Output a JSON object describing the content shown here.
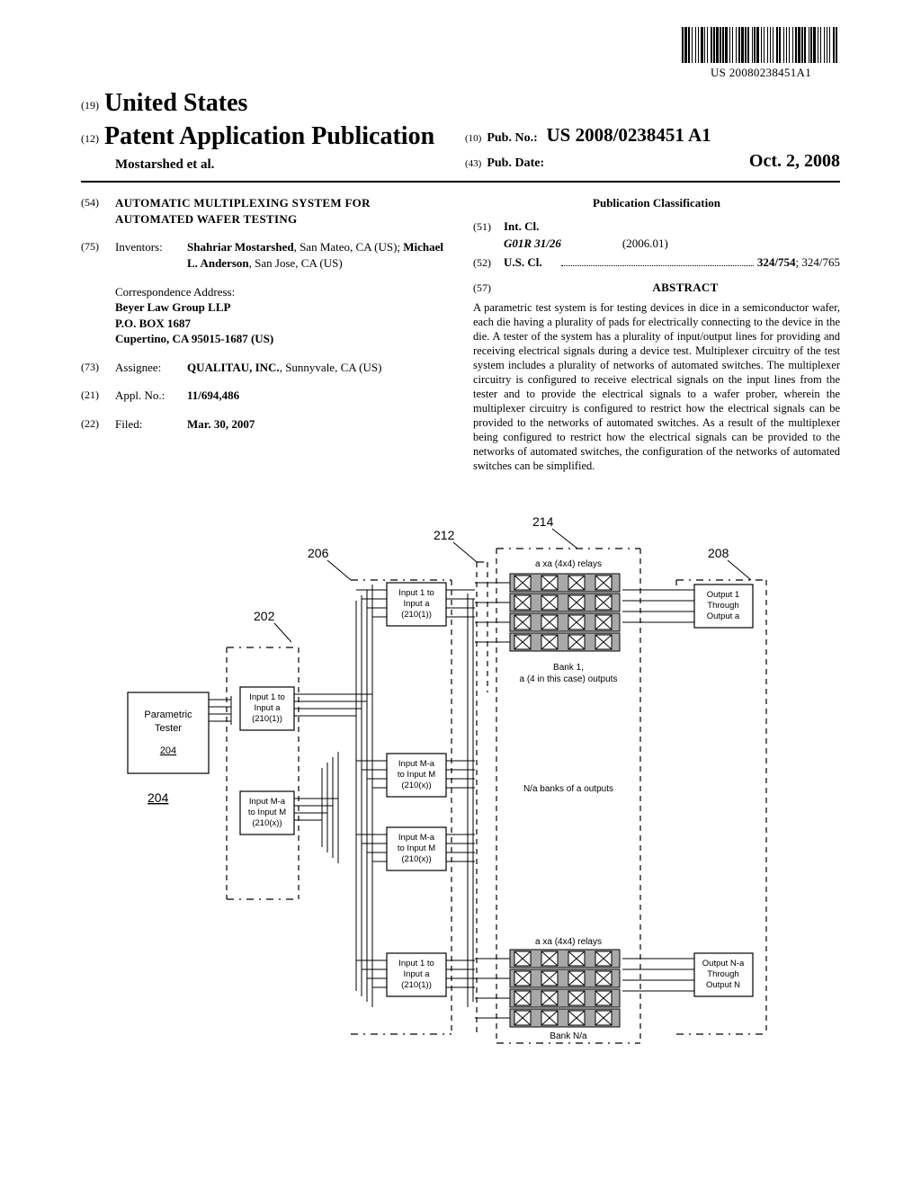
{
  "barcode": {
    "sub_text": "US 20080238451A1",
    "bar_widths": [
      2,
      1,
      3,
      1,
      2,
      2,
      1,
      3,
      1,
      2,
      1,
      2,
      3,
      1,
      1,
      2,
      1,
      3,
      2,
      1,
      2,
      1,
      3,
      1,
      2,
      1,
      2,
      1,
      3,
      2,
      1,
      2,
      1,
      3,
      1,
      2,
      2,
      1,
      3,
      1,
      2,
      1,
      2,
      3,
      1,
      1,
      2,
      1,
      3,
      2,
      1,
      2,
      1,
      3,
      1,
      2,
      1,
      2,
      1,
      3,
      2,
      1,
      2,
      3,
      1,
      2,
      1,
      2,
      1,
      3,
      1,
      2,
      2,
      1,
      3,
      1,
      2,
      1,
      2,
      3,
      1,
      1,
      2,
      1,
      3,
      2,
      1,
      2,
      1,
      3,
      1,
      2,
      1,
      2,
      1,
      3,
      2,
      1,
      2,
      3
    ]
  },
  "header": {
    "code19": "(19)",
    "country": "United States",
    "code12": "(12)",
    "pub_type": "Patent Application Publication",
    "authors_line": "Mostarshed et al.",
    "code10": "(10)",
    "pubnum_label": "Pub. No.:",
    "pubnum_val": "US 2008/0238451 A1",
    "code43": "(43)",
    "pubdate_label": "Pub. Date:",
    "pubdate_val": "Oct. 2, 2008"
  },
  "left_col": {
    "f54": {
      "code": "(54)",
      "title_l1": "AUTOMATIC MULTIPLEXING SYSTEM FOR",
      "title_l2": "AUTOMATED WAFER TESTING"
    },
    "f75": {
      "code": "(75)",
      "label": "Inventors:",
      "inv1_name": "Shahriar Mostarshed",
      "inv1_loc": ", San Mateo, CA (US); ",
      "inv2_name": "Michael L. Anderson",
      "inv2_loc": ", San Jose, CA (US)"
    },
    "correspondence": {
      "header": "Correspondence Address:",
      "l1": "Beyer Law Group LLP",
      "l2": "P.O. BOX 1687",
      "l3": "Cupertino, CA 95015-1687 (US)"
    },
    "f73": {
      "code": "(73)",
      "label": "Assignee:",
      "name": "QUALITAU, INC.",
      "rest": ", Sunnyvale, CA (US)"
    },
    "f21": {
      "code": "(21)",
      "label": "Appl. No.:",
      "value": "11/694,486"
    },
    "f22": {
      "code": "(22)",
      "label": "Filed:",
      "value": "Mar. 30, 2007"
    }
  },
  "right_col": {
    "class_heading": "Publication Classification",
    "f51": {
      "code": "(51)",
      "label": "Int. Cl.",
      "class": "G01R 31/26",
      "year": "(2006.01)"
    },
    "f52": {
      "code": "(52)",
      "label": "U.S. Cl.",
      "val_bold": "324/754",
      "val_rest": "; 324/765"
    },
    "f57": {
      "code": "(57)",
      "label": "ABSTRACT"
    },
    "abstract": "A parametric test system is for testing devices in dice in a semiconductor wafer, each die having a plurality of pads for electrically connecting to the device in the die. A tester of the system has a plurality of input/output lines for providing and receiving electrical signals during a device test. Multiplexer circuitry of the test system includes a plurality of networks of automated switches. The multiplexer circuitry is configured to receive electrical signals on the input lines from the tester and to provide the electrical signals to a wafer prober, wherein the multiplexer circuitry is configured to restrict how the electrical signals can be provided to the networks of automated switches. As a result of the multiplexer being configured to restrict how the electrical signals can be provided to the networks of automated switches, the configuration of the networks of automated switches can be simplified."
  },
  "figure": {
    "refs": {
      "r202": "202",
      "r204": "204",
      "r206": "206",
      "r208": "208",
      "r212": "212",
      "r214": "214"
    },
    "tester": {
      "l1": "Parametric",
      "l2": "Tester",
      "underline": "204"
    },
    "tester_inputs": {
      "top_l1": "Input 1 to",
      "top_l2": "Input a",
      "top_l3": "(210(1))",
      "bot_l1": "Input M-a",
      "bot_l2": "to Input M",
      "bot_l3": "(210(x))"
    },
    "stage2": {
      "b1_l1": "Input 1 to",
      "b1_l2": "Input a",
      "b1_l3": "(210(1))",
      "b2_l1": "Input M-a",
      "b2_l2": "to Input M",
      "b2_l3": "(210(x))",
      "b3_l1": "Input M-a",
      "b3_l2": "to Input M",
      "b3_l3": "(210(x))",
      "b4_l1": "Input 1 to",
      "b4_l2": "Input a",
      "b4_l3": "(210(1))"
    },
    "relays": {
      "top_label": "a xa (4x4) relays",
      "bank1_l1": "Bank 1,",
      "bank1_l2": "a (4 in this case) outputs",
      "mid_label": "N/a banks of a outputs",
      "bot_label": "a xa (4x4) relays",
      "bankna": "Bank N/a",
      "fill": "#a8a8a8"
    },
    "outputs": {
      "top_l1": "Output 1",
      "top_l2": "Through",
      "top_l3": "Output a",
      "bot_l1": "Output N-a",
      "bot_l2": "Through",
      "bot_l3": "Output N"
    }
  }
}
